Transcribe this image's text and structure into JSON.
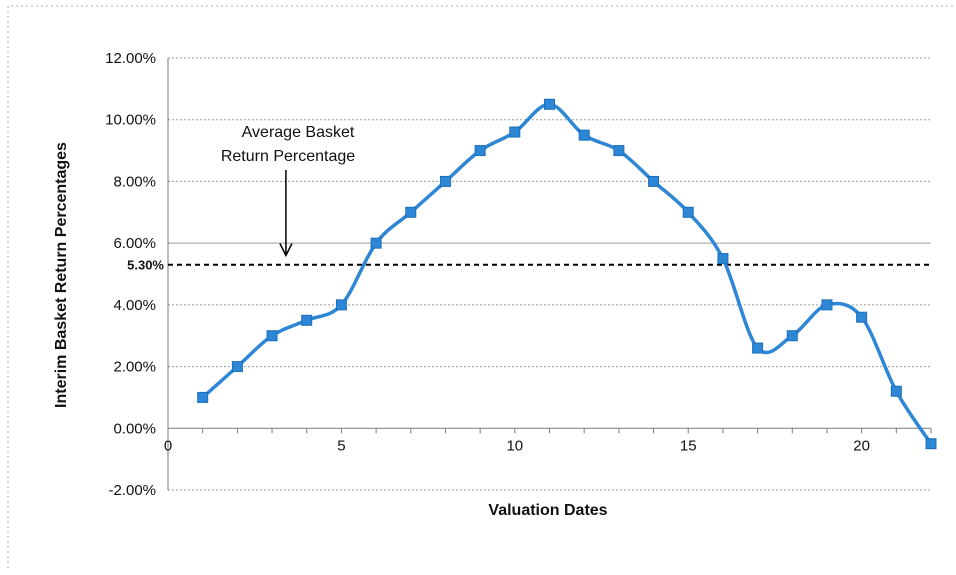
{
  "chart_data": {
    "type": "line",
    "title": "",
    "xlabel": "Valuation Dates",
    "ylabel": "Interim Basket Return Percentages",
    "xlim": [
      0,
      22
    ],
    "ylim": [
      -2,
      12
    ],
    "x_ticks": [
      "0",
      "5",
      "10",
      "15",
      "20"
    ],
    "x_tick_values": [
      0,
      5,
      10,
      15,
      20
    ],
    "y_ticks": [
      "12.00%",
      "10.00%",
      "8.00%",
      "6.00%",
      "4.00%",
      "2.00%",
      "0.00%",
      "-2.00%"
    ],
    "y_tick_values": [
      12,
      10,
      8,
      6,
      4,
      2,
      0,
      -2
    ],
    "grid": true,
    "legend": "none",
    "series": [
      {
        "color": "#2e86d6",
        "x": [
          1,
          2,
          3,
          4,
          5,
          6,
          7,
          8,
          9,
          10,
          11,
          12,
          13,
          14,
          15,
          16,
          17,
          18,
          19,
          20,
          21,
          22
        ],
        "values": [
          1.0,
          2.0,
          3.0,
          3.5,
          4.0,
          6.0,
          7.0,
          8.0,
          9.0,
          9.6,
          10.5,
          9.5,
          9.0,
          8.0,
          7.0,
          5.5,
          2.6,
          3.0,
          4.0,
          3.6,
          1.2,
          -0.5
        ]
      }
    ],
    "reference_line": {
      "value": 5.3,
      "label": "5.30%",
      "style": "dashed",
      "color": "#000000"
    },
    "annotation": {
      "lines": [
        "Average Basket",
        "Return Percentage"
      ],
      "arrow_target": [
        3.4,
        5.6
      ]
    }
  }
}
